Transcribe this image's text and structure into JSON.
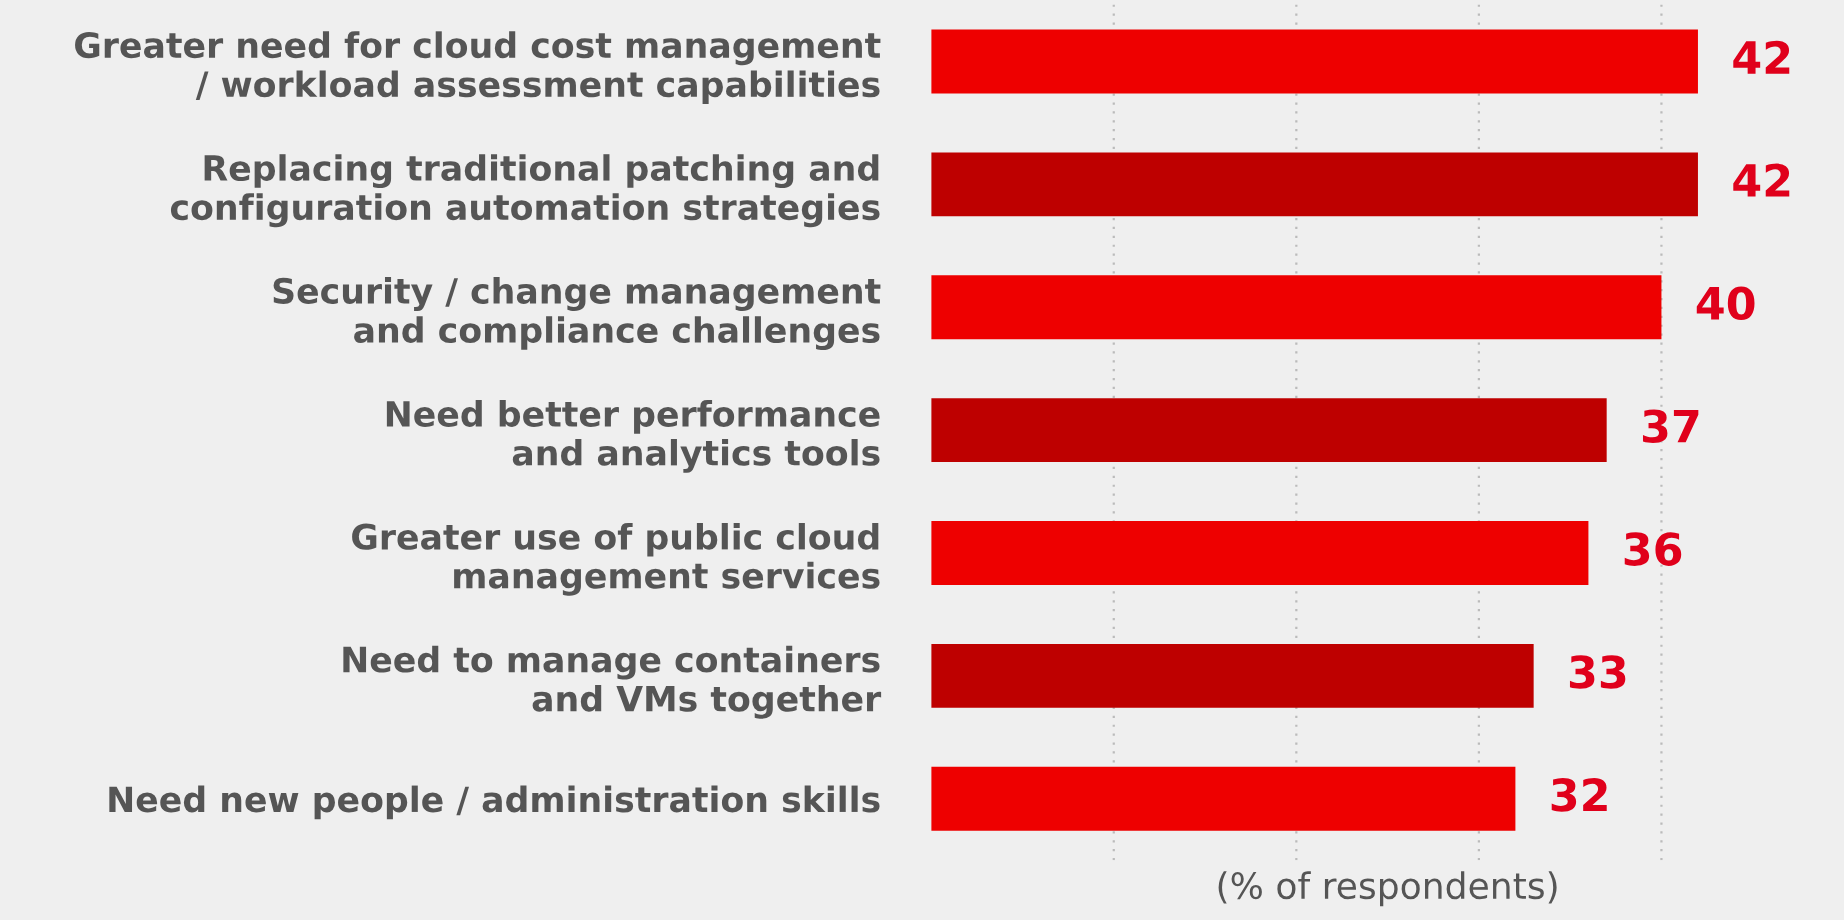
{
  "chart_data": {
    "type": "bar",
    "orientation": "horizontal",
    "xlabel": "(% of respondents)",
    "categories": [
      "Greater need for cloud cost management\n/ workload assessment capabilities",
      "Replacing traditional patching and\nconfiguration automation strategies",
      "Security / change management\nand compliance challenges",
      "Need better performance\nand analytics tools",
      "Greater use of public cloud\nmanagement services",
      "Need to manage containers\nand VMs together",
      "Need new people / administration skills"
    ],
    "values": [
      42,
      42,
      40,
      37,
      36,
      33,
      32
    ],
    "colors": [
      "#ee0000",
      "#be0000",
      "#ee0000",
      "#be0000",
      "#ee0000",
      "#be0000",
      "#ee0000"
    ],
    "xlim": [
      0,
      50
    ],
    "xticks": [
      {
        "value": 10,
        "label": null
      },
      {
        "value": 20,
        "label": null
      },
      {
        "value": 30,
        "label": null
      },
      {
        "value": 40,
        "label": null
      }
    ],
    "grid": "x",
    "tick_labels": "y",
    "data_labels": true
  }
}
